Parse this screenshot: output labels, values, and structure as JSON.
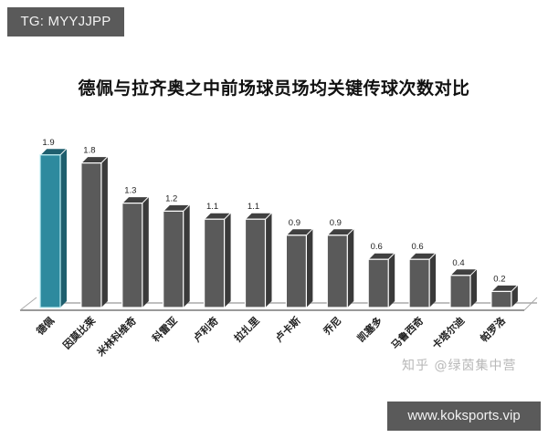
{
  "badges": {
    "top_left": "TG: MYYJJPP",
    "bottom_right": "www.koksports.vip"
  },
  "watermark": "知乎 @绿茵集中营",
  "colors": {
    "highlight_bar": "#2e8a9e",
    "highlight_side": "#1f5f6e",
    "bar": "#5a5a5a",
    "bar_side": "#3a3a3a",
    "bar_top": "#404040",
    "floor_line": "#aaaaaa"
  },
  "chart_data": {
    "type": "bar",
    "title": "德佩与拉齐奥之中前场球员场均关键传球次数对比",
    "xlabel": "",
    "ylabel": "",
    "ylim": [
      0,
      2
    ],
    "grid": false,
    "legend": null,
    "style": "3d-column",
    "categories": [
      "德佩",
      "因莫比莱",
      "米林科维奇",
      "科雷亚",
      "卢利奇",
      "拉扎里",
      "卢卡斯",
      "乔尼",
      "凯塞多",
      "马鲁西奇",
      "卡塔尔迪",
      "帕罗洛"
    ],
    "values": [
      1.9,
      1.8,
      1.3,
      1.2,
      1.1,
      1.1,
      0.9,
      0.9,
      0.6,
      0.6,
      0.4,
      0.2
    ],
    "value_labels": [
      "1.9",
      "1.8",
      "1.3",
      "1.2",
      "1.1",
      "1.1",
      "0.9",
      "0.9",
      "0.6",
      "0.6",
      "0.4",
      "0.2"
    ],
    "highlight_index": 0
  }
}
